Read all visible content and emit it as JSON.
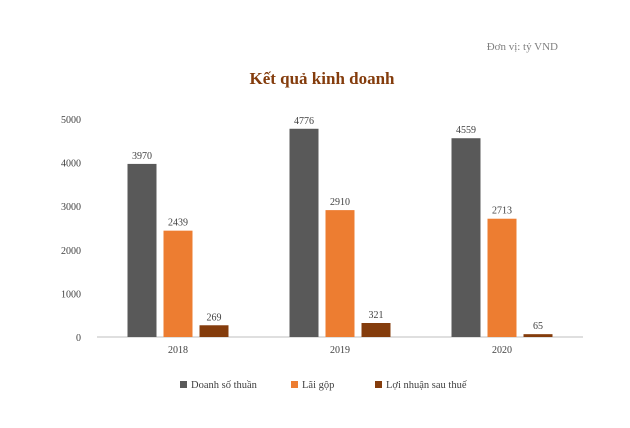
{
  "unit_note": "Đơn vị: tỷ VND",
  "chart_data": {
    "type": "bar",
    "title": "Kết quả kinh doanh",
    "xlabel": "",
    "ylabel": "",
    "ylim": [
      0,
      5000
    ],
    "yticks": [
      0,
      1000,
      2000,
      3000,
      4000,
      5000
    ],
    "categories": [
      "2018",
      "2019",
      "2020"
    ],
    "series": [
      {
        "name": "Doanh số thuần",
        "color": "#595959",
        "values": [
          3970,
          4776,
          4559
        ]
      },
      {
        "name": "Lãi gộp",
        "color": "#ED7D31",
        "values": [
          2439,
          2910,
          2713
        ]
      },
      {
        "name": "Lợi nhuận sau thuế",
        "color": "#843C0C",
        "values": [
          269,
          321,
          65
        ]
      }
    ],
    "grid": false,
    "legend": "bottom",
    "title_color": "#843C0C"
  }
}
